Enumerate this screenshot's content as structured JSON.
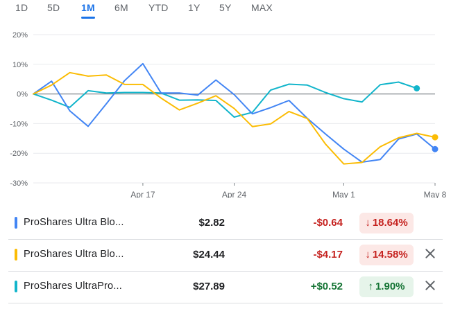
{
  "range_tabs": [
    {
      "label": "1D",
      "active": false
    },
    {
      "label": "5D",
      "active": false
    },
    {
      "label": "1M",
      "active": true
    },
    {
      "label": "6M",
      "active": false
    },
    {
      "label": "YTD",
      "active": false
    },
    {
      "label": "1Y",
      "active": false
    },
    {
      "label": "5Y",
      "active": false
    },
    {
      "label": "MAX",
      "active": false
    }
  ],
  "chart_data": {
    "type": "line",
    "y_tick_labels": [
      "20%",
      "10%",
      "0%",
      "-10%",
      "-20%",
      "-30%"
    ],
    "y_ticks": [
      20,
      10,
      0,
      -10,
      -20,
      -30
    ],
    "ylim": [
      -30,
      20
    ],
    "x_tick_labels": [
      "Apr 17",
      "Apr 24",
      "May 1",
      "May 8"
    ],
    "x_tick_index": [
      6,
      11,
      17,
      22
    ],
    "grid": "horizontal",
    "zero_line": true,
    "series": [
      {
        "color": "#4285f4",
        "values": [
          0,
          4.3,
          -5.7,
          -10.9,
          -3.3,
          4.5,
          10.2,
          0.3,
          0.3,
          -0.4,
          4.7,
          -0.2,
          -6.7,
          -4.6,
          -2.2,
          -8.2,
          -13.5,
          -18.6,
          -23,
          -22.1,
          -15.2,
          -13.5,
          -18.6
        ]
      },
      {
        "color": "#fbbc04",
        "values": [
          0,
          3,
          7.2,
          6,
          6.4,
          3.2,
          3.2,
          -1.4,
          -5.4,
          -3.1,
          -0.6,
          -4.9,
          -11,
          -10.1,
          -5.9,
          -8.3,
          -16.9,
          -23.6,
          -23.1,
          -17.8,
          -14.8,
          -13.3,
          -14.6
        ]
      },
      {
        "color": "#12b5cb",
        "values": [
          0,
          -2.1,
          -4.5,
          1.1,
          0.3,
          0.5,
          0.5,
          0.3,
          -2.1,
          -2,
          -2.2,
          -7.8,
          -6.2,
          1.3,
          3.3,
          3,
          0.5,
          -1.6,
          -2.7,
          3.1,
          4,
          1.9
        ]
      }
    ]
  },
  "holdings": [
    {
      "name": "ProShares Ultra Blo...",
      "price": "$2.82",
      "change": "-$0.64",
      "percent": "18.64%",
      "direction": "down",
      "color": "#4285f4",
      "removable": false
    },
    {
      "name": "ProShares Ultra Blo...",
      "price": "$24.44",
      "change": "-$4.17",
      "percent": "14.58%",
      "direction": "down",
      "color": "#fbbc04",
      "removable": true
    },
    {
      "name": "ProShares UltraPro...",
      "price": "$27.89",
      "change": "+$0.52",
      "percent": "1.90%",
      "direction": "up",
      "color": "#12b5cb",
      "removable": true
    }
  ],
  "icons": {
    "down_arrow": "arrow-down-icon",
    "up_arrow": "arrow-up-icon",
    "remove": "close-icon"
  }
}
